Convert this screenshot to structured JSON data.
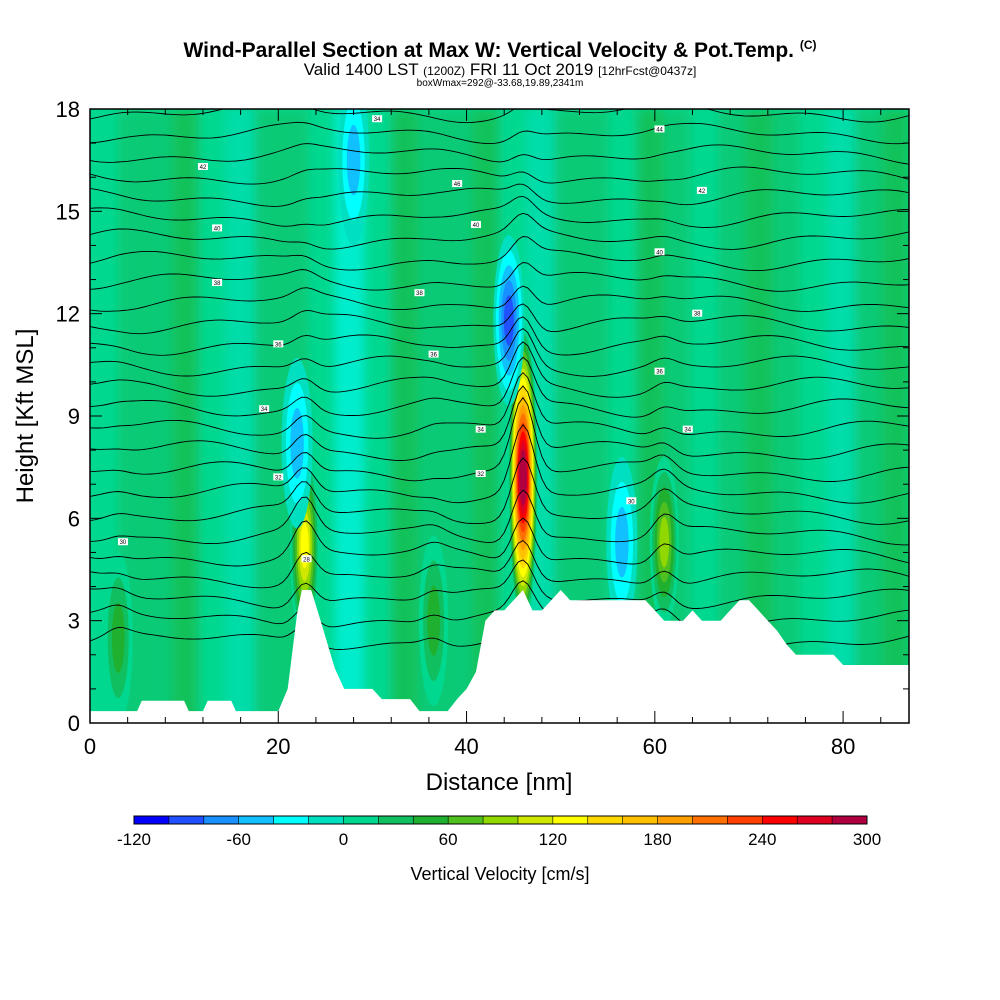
{
  "chart_data": {
    "type": "heatmap",
    "title": "Wind-Parallel Section at Max W: Vertical Velocity & Pot.Temp.",
    "title_tag": "(C)",
    "subtitle_valid": "Valid 1400 LST",
    "subtitle_z": "(1200Z)",
    "subtitle_date": "FRI 11 Oct 2019",
    "subtitle_fcst": "[12hrFcst@0437z]",
    "subtitle_box": "boxWmax=292@-33.68,19.89,2341m",
    "xlabel": "Distance [nm]",
    "ylabel": "Height [Kft MSL]",
    "xlim": [
      0,
      87
    ],
    "ylim": [
      0,
      18
    ],
    "x_ticks": [
      "0",
      "20",
      "40",
      "60",
      "80"
    ],
    "y_ticks": [
      "0",
      "3",
      "6",
      "9",
      "12",
      "15",
      "18"
    ],
    "colorbar": {
      "label": "Vertical Velocity [cm/s]",
      "min": -120,
      "max": 300,
      "step": 20,
      "tick_labels": [
        "-120",
        "-60",
        "0",
        "60",
        "120",
        "180",
        "240",
        "300"
      ],
      "colors": [
        "#0000ff",
        "#2050ff",
        "#1890ff",
        "#10c0ff",
        "#00ffff",
        "#00e0c0",
        "#00d890",
        "#10c060",
        "#20b030",
        "#50c020",
        "#90d800",
        "#d0e800",
        "#ffff00",
        "#ffd800",
        "#ffc000",
        "#ffa000",
        "#ff7000",
        "#ff4000",
        "#ff0000",
        "#e00020",
        "#b00040"
      ]
    },
    "terrain": [
      [
        0,
        0.35
      ],
      [
        5,
        0.35
      ],
      [
        5.5,
        0.65
      ],
      [
        10,
        0.65
      ],
      [
        10.5,
        0.35
      ],
      [
        12,
        0.35
      ],
      [
        12.5,
        0.65
      ],
      [
        15,
        0.65
      ],
      [
        15.5,
        0.35
      ],
      [
        20,
        0.35
      ],
      [
        21,
        1.0
      ],
      [
        22,
        3.2
      ],
      [
        22.5,
        3.9
      ],
      [
        23.5,
        3.9
      ],
      [
        24.5,
        3.0
      ],
      [
        26,
        1.6
      ],
      [
        27,
        1.0
      ],
      [
        30,
        1.0
      ],
      [
        31,
        0.7
      ],
      [
        34,
        0.7
      ],
      [
        35,
        0.35
      ],
      [
        38,
        0.35
      ],
      [
        39,
        0.7
      ],
      [
        40,
        1.0
      ],
      [
        41,
        1.5
      ],
      [
        42,
        3.0
      ],
      [
        43,
        3.3
      ],
      [
        44,
        3.3
      ],
      [
        45,
        3.6
      ],
      [
        46,
        3.9
      ],
      [
        47,
        3.3
      ],
      [
        48,
        3.3
      ],
      [
        49,
        3.6
      ],
      [
        50,
        3.9
      ],
      [
        51,
        3.6
      ],
      [
        59,
        3.6
      ],
      [
        60,
        3.3
      ],
      [
        61,
        3.0
      ],
      [
        63,
        3.0
      ],
      [
        64,
        3.3
      ],
      [
        65,
        3.0
      ],
      [
        67,
        3.0
      ],
      [
        68,
        3.3
      ],
      [
        69,
        3.6
      ],
      [
        70,
        3.6
      ],
      [
        71,
        3.3
      ],
      [
        72,
        3.0
      ],
      [
        73,
        2.7
      ],
      [
        74,
        2.3
      ],
      [
        75,
        2.0
      ],
      [
        79,
        2.0
      ],
      [
        80,
        1.7
      ],
      [
        87,
        1.7
      ]
    ],
    "updrafts": [
      {
        "x": 46.0,
        "z": 7.2,
        "w": 292
      },
      {
        "x": 22.8,
        "z": 5.2,
        "w": 120
      },
      {
        "x": 61.0,
        "z": 5.3,
        "w": 70
      },
      {
        "x": 3.0,
        "z": 2.5,
        "w": 25
      },
      {
        "x": 36.5,
        "z": 3.0,
        "w": 30
      }
    ],
    "downdrafts": [
      {
        "x": 44.5,
        "z": 11.8,
        "w": -70
      },
      {
        "x": 22.0,
        "z": 8.2,
        "w": -40
      },
      {
        "x": 56.5,
        "z": 5.3,
        "w": -30
      },
      {
        "x": 28.0,
        "z": 16.5,
        "w": -30
      }
    ],
    "contour_labels": [
      {
        "x": 30.5,
        "z": 17.7,
        "text": "34"
      },
      {
        "x": 60.5,
        "z": 17.4,
        "text": "44"
      },
      {
        "x": 12.0,
        "z": 16.3,
        "text": "42"
      },
      {
        "x": 39.0,
        "z": 15.8,
        "text": "46"
      },
      {
        "x": 65.0,
        "z": 15.6,
        "text": "42"
      },
      {
        "x": 13.5,
        "z": 14.5,
        "text": "40"
      },
      {
        "x": 41.0,
        "z": 14.6,
        "text": "40"
      },
      {
        "x": 60.5,
        "z": 13.8,
        "text": "40"
      },
      {
        "x": 13.5,
        "z": 12.9,
        "text": "38"
      },
      {
        "x": 35.0,
        "z": 12.6,
        "text": "38"
      },
      {
        "x": 64.5,
        "z": 12.0,
        "text": "38"
      },
      {
        "x": 20.0,
        "z": 11.1,
        "text": "36"
      },
      {
        "x": 36.5,
        "z": 10.8,
        "text": "36"
      },
      {
        "x": 60.5,
        "z": 10.3,
        "text": "36"
      },
      {
        "x": 18.5,
        "z": 9.2,
        "text": "34"
      },
      {
        "x": 41.5,
        "z": 8.6,
        "text": "34"
      },
      {
        "x": 63.5,
        "z": 8.6,
        "text": "34"
      },
      {
        "x": 20.0,
        "z": 7.2,
        "text": "32"
      },
      {
        "x": 41.5,
        "z": 7.3,
        "text": "32"
      },
      {
        "x": 57.5,
        "z": 6.5,
        "text": "30"
      },
      {
        "x": 3.5,
        "z": 5.3,
        "text": "30"
      },
      {
        "x": 23.0,
        "z": 4.8,
        "text": "28"
      }
    ]
  }
}
